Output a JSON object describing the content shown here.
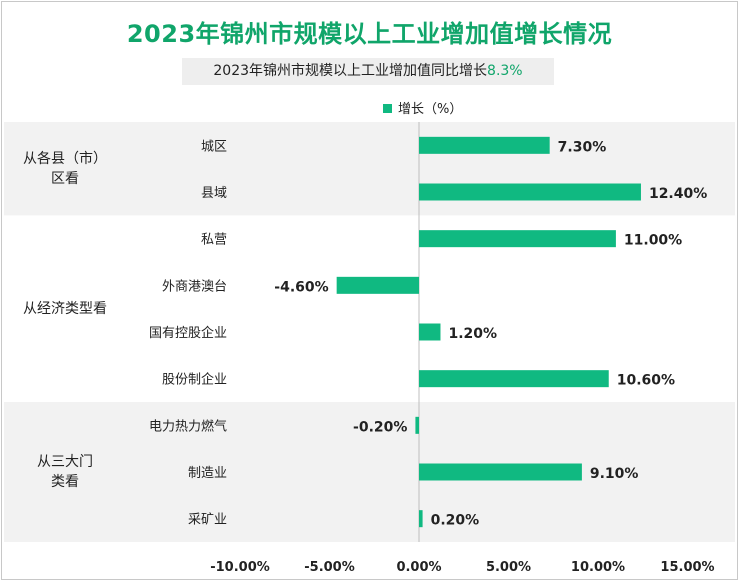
{
  "title": "2023年锦州市规模以上工业增加值增长情况",
  "subtitle": {
    "text": "2023年锦州市规模以上工业增加值同比增长",
    "highlight": "8.3%"
  },
  "colors": {
    "bar": "#10b981",
    "title": "#10a56a",
    "band": "#f2f2f2"
  },
  "chart_data": {
    "type": "bar",
    "orientation": "horizontal",
    "categories": [
      "城区",
      "县域",
      "私营",
      "外商港澳台",
      "国有控股企业",
      "股份制企业",
      "电力热力燃气",
      "制造业",
      "采矿业"
    ],
    "series": [
      {
        "name": "增长（%）",
        "values": [
          7.3,
          12.4,
          11.0,
          -4.6,
          1.2,
          10.6,
          -0.2,
          9.1,
          0.2
        ],
        "labels": [
          "7.30%",
          "12.40%",
          "11.00%",
          "-4.60%",
          "1.20%",
          "10.60%",
          "-0.20%",
          "9.10%",
          "0.20%"
        ]
      }
    ],
    "groups": [
      {
        "label": [
          "从各县（市）",
          "区看"
        ],
        "count": 2
      },
      {
        "label": [
          "从经济类型看"
        ],
        "count": 4
      },
      {
        "label": [
          "从三大门",
          "类看"
        ],
        "count": 3
      }
    ],
    "xlim": [
      -10,
      15
    ],
    "xticks": [
      -10,
      -5,
      0,
      5,
      10,
      15
    ],
    "xtick_labels": [
      "-10.00%",
      "-5.00%",
      "0.00%",
      "5.00%",
      "10.00%",
      "15.00%"
    ],
    "legend": "top"
  }
}
